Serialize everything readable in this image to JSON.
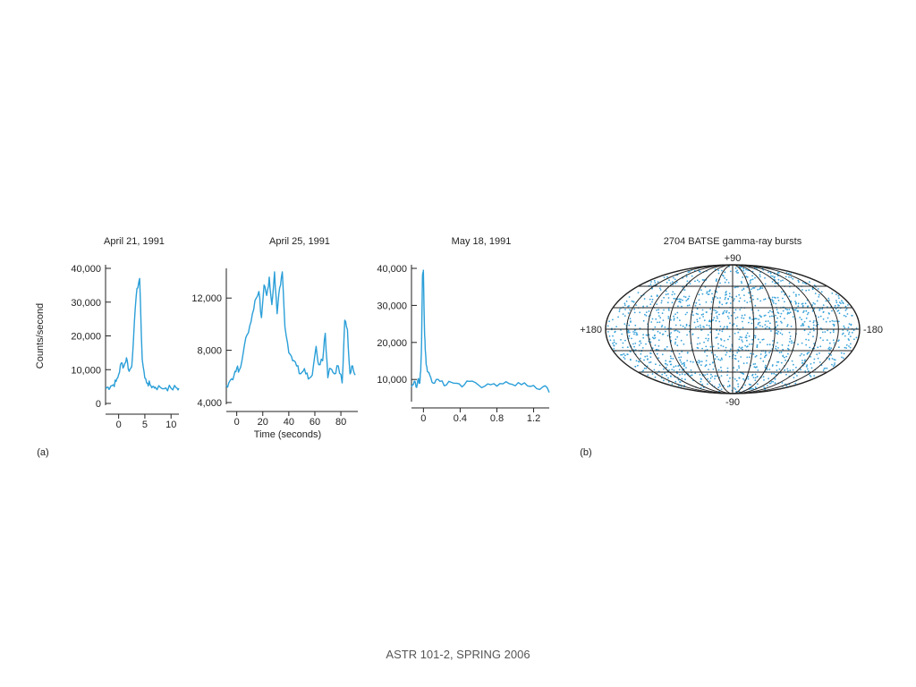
{
  "chart_data": [
    {
      "type": "line",
      "title": "April 21, 1991",
      "ylabel": "Counts/second",
      "xlim": [
        -2.5,
        11.5
      ],
      "ylim": [
        0,
        40000
      ],
      "xticks": [
        0,
        5,
        10
      ],
      "yticks": [
        0,
        10000,
        20000,
        30000,
        40000
      ],
      "xtick_labels": [
        "0",
        "5",
        "10"
      ],
      "ytick_labels": [
        "0",
        "10,000",
        "20,000",
        "30,000",
        "40,000"
      ],
      "series": [
        {
          "x": [
            -2.5,
            -2,
            -1.5,
            -1,
            -0.5,
            0,
            0.5,
            1,
            1.5,
            2,
            2.5,
            3,
            3.5,
            4,
            4.5,
            5,
            5.5,
            6,
            6.5,
            7,
            8,
            9,
            10,
            11,
            11.5
          ],
          "y": [
            4500,
            4800,
            5200,
            5500,
            6500,
            8500,
            12000,
            11000,
            13500,
            9500,
            11000,
            24000,
            34000,
            37000,
            13000,
            7500,
            6000,
            5500,
            5000,
            4800,
            4700,
            4600,
            4500,
            4600,
            4500
          ]
        }
      ]
    },
    {
      "type": "line",
      "title": "April 25, 1991",
      "xlabel": "Time (seconds)",
      "xlim": [
        -8,
        93
      ],
      "ylim": [
        4000,
        14000
      ],
      "xticks": [
        0,
        20,
        40,
        60,
        80
      ],
      "yticks": [
        4000,
        8000,
        12000
      ],
      "xtick_labels": [
        "0",
        "20",
        "40",
        "60",
        "80"
      ],
      "ytick_labels": [
        "4,000",
        "8,000",
        "12,000"
      ],
      "series": [
        {
          "x": [
            -8,
            -5,
            -2,
            0,
            2,
            5,
            8,
            11,
            14,
            17,
            19,
            21,
            23,
            25,
            27,
            29,
            31,
            33,
            35,
            37,
            40,
            43,
            46,
            49,
            52,
            55,
            58,
            61,
            63,
            66,
            68,
            70,
            72,
            75,
            78,
            81,
            83,
            85,
            87,
            89,
            91
          ],
          "y": [
            5300,
            5700,
            6100,
            6600,
            6500,
            7800,
            9200,
            10200,
            11800,
            12500,
            10500,
            13000,
            12200,
            13600,
            11500,
            14000,
            10800,
            12800,
            14000,
            9800,
            7800,
            7200,
            6800,
            6200,
            6600,
            5800,
            6100,
            8300,
            6900,
            7200,
            9300,
            5900,
            6600,
            6200,
            6800,
            5500,
            10300,
            9600,
            6200,
            6800,
            6100
          ]
        }
      ]
    },
    {
      "type": "line",
      "title": "May 18, 1991",
      "xlim": [
        -0.13,
        1.37
      ],
      "ylim": [
        4500,
        40000
      ],
      "xticks": [
        0,
        0.4,
        0.8,
        1.2
      ],
      "yticks": [
        10000,
        20000,
        30000,
        40000
      ],
      "xtick_labels": [
        "0",
        "0.4",
        "0.8",
        "1.2"
      ],
      "ytick_labels": [
        "10,000",
        "20,000",
        "30,000",
        "40,000"
      ],
      "series": [
        {
          "x": [
            -0.13,
            -0.1,
            -0.08,
            -0.06,
            -0.04,
            -0.03,
            -0.02,
            -0.01,
            0.0,
            0.01,
            0.02,
            0.03,
            0.05,
            0.08,
            0.12,
            0.18,
            0.25,
            0.33,
            0.42,
            0.5,
            0.6,
            0.7,
            0.8,
            0.9,
            1.0,
            1.1,
            1.2,
            1.3,
            1.37
          ],
          "y": [
            8000,
            9500,
            8000,
            10000,
            9000,
            12000,
            20000,
            38000,
            39500,
            25000,
            18000,
            14000,
            12000,
            10500,
            9000,
            9500,
            8500,
            9000,
            8000,
            9500,
            8500,
            8800,
            8200,
            9400,
            8300,
            9100,
            8400,
            8000,
            6500
          ]
        }
      ]
    },
    {
      "type": "scatter",
      "title": "2704 BATSE gamma-ray bursts",
      "projection": "aitoff",
      "count": 2704,
      "axis_labels": {
        "top": "+90",
        "bottom": "-90",
        "left": "+180",
        "right": "-180"
      }
    }
  ],
  "panel_labels": {
    "a": "(a)",
    "b": "(b)"
  },
  "colors": {
    "trace": "#2b9fd8",
    "grid": "#222222",
    "dots": "#3aa3d9"
  },
  "footer": "ASTR 101-2, SPRING 2006"
}
